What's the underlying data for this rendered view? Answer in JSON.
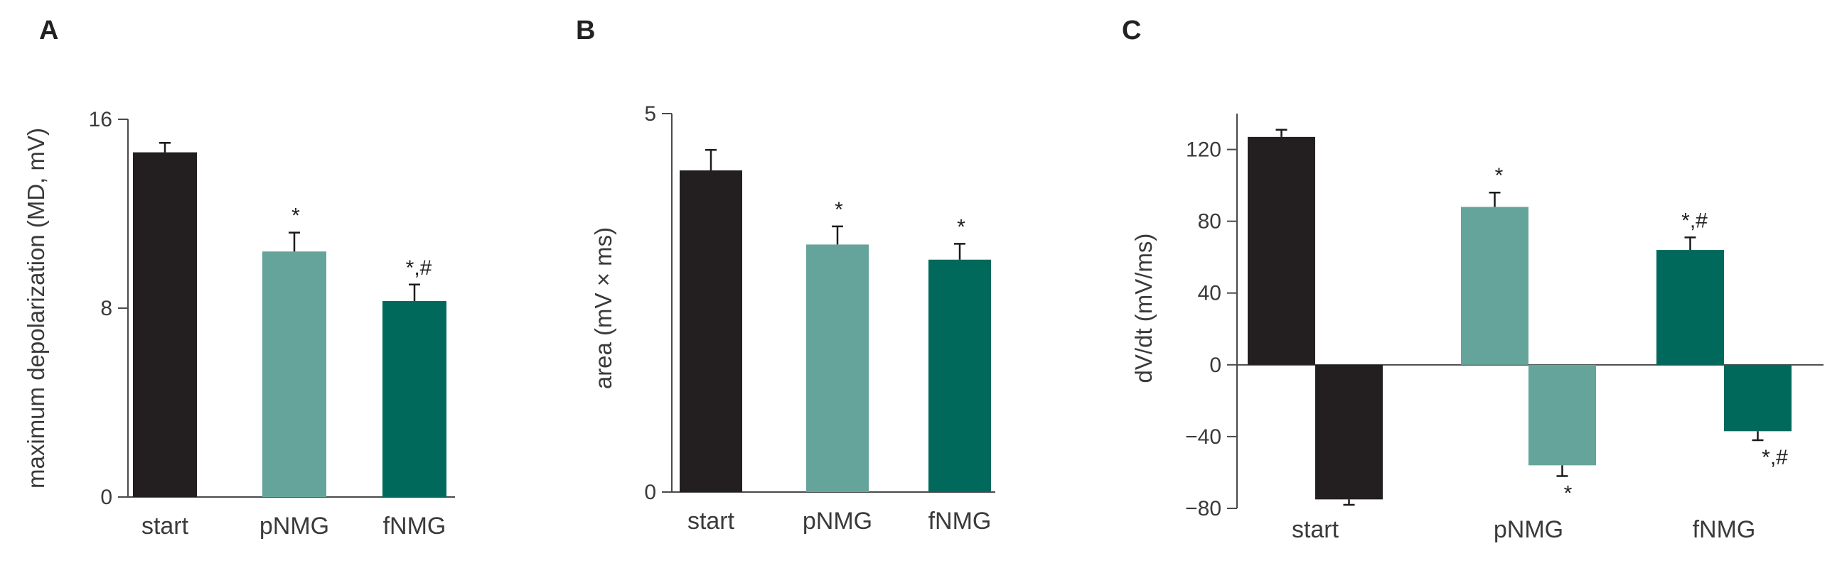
{
  "chart_data": [
    {
      "panel_label": "A",
      "type": "bar",
      "categories": [
        "start",
        "pNMG",
        "fNMG"
      ],
      "values": [
        14.6,
        10.4,
        8.3
      ],
      "errors": [
        0.4,
        0.8,
        0.7
      ],
      "annotations": [
        "",
        "*",
        "*,#"
      ],
      "colors": [
        "#231f20",
        "#65a49a",
        "#00695c"
      ],
      "ylabel": "maximum depolarization (MD, mV)",
      "ylim": [
        0,
        16
      ],
      "yticks": [
        0,
        8,
        16
      ],
      "ytick_labels": [
        "0",
        "8",
        "16"
      ]
    },
    {
      "panel_label": "B",
      "type": "bar",
      "categories": [
        "start",
        "pNMG",
        "fNMG"
      ],
      "values": [
        4.25,
        3.27,
        3.07
      ],
      "errors": [
        0.27,
        0.24,
        0.21
      ],
      "annotations": [
        "",
        "*",
        "*"
      ],
      "colors": [
        "#231f20",
        "#65a49a",
        "#00695c"
      ],
      "ylabel": "area (mV × ms)",
      "ylim": [
        0,
        5
      ],
      "yticks": [
        0,
        5
      ],
      "ytick_labels": [
        "0",
        "5"
      ]
    },
    {
      "panel_label": "C",
      "type": "bar",
      "categories": [
        "start",
        "pNMG",
        "fNMG"
      ],
      "series": [
        {
          "values": [
            127,
            88,
            64
          ],
          "errors": [
            4,
            8,
            7
          ],
          "annotations": [
            "",
            "*",
            "*,#"
          ]
        },
        {
          "values": [
            -75,
            -56,
            -37
          ],
          "errors": [
            3,
            6,
            5
          ],
          "annotations": [
            "",
            "*",
            "*,#"
          ]
        }
      ],
      "colors": [
        "#231f20",
        "#65a49a",
        "#00695c"
      ],
      "ylabel": "dV/dt (mV/ms)",
      "ylim": [
        -80,
        140
      ],
      "yticks": [
        -80,
        -40,
        0,
        40,
        80,
        120
      ],
      "ytick_labels": [
        "−80",
        "−40",
        "0",
        "40",
        "80",
        "120"
      ]
    }
  ]
}
